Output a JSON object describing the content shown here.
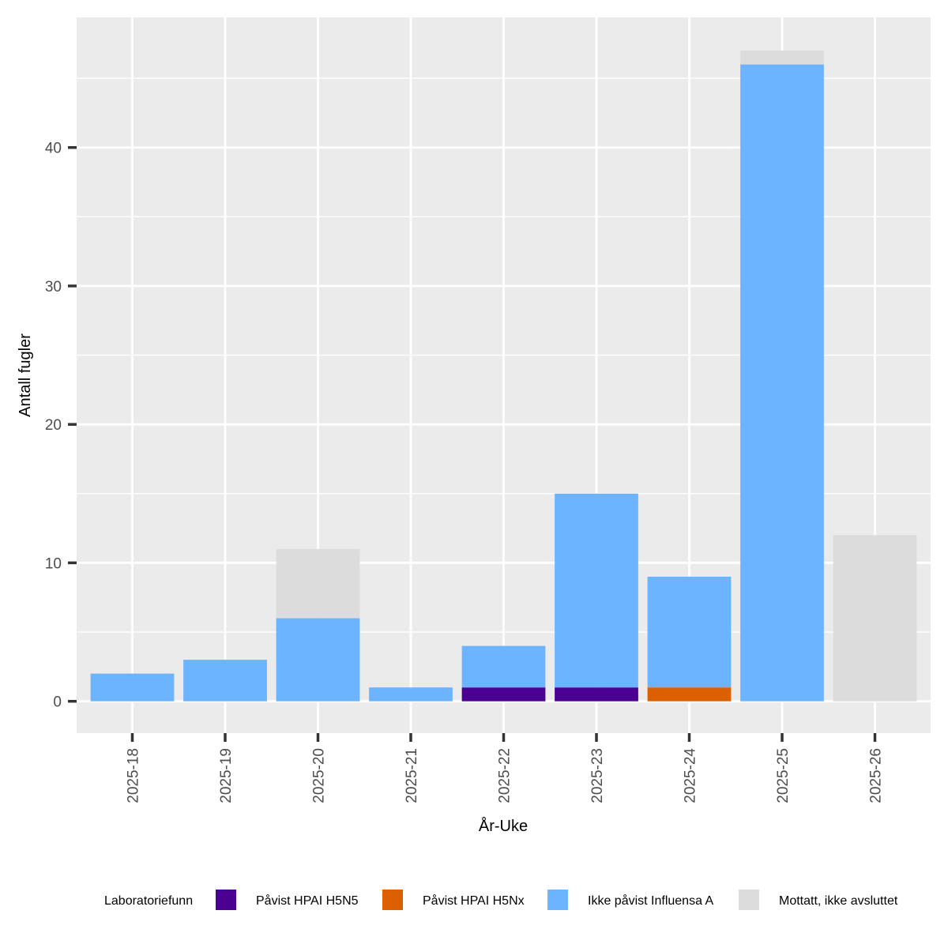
{
  "chart_data": {
    "type": "bar",
    "stacked": true,
    "xlabel": "År-Uke",
    "ylabel": "Antall fugler",
    "ylim": [
      -2.3,
      49.4
    ],
    "yticks": [
      0,
      10,
      20,
      30,
      40
    ],
    "grid": true,
    "legend_position": "bottom",
    "legend_title": "Laboratoriefunn",
    "categories": [
      "2025-18",
      "2025-19",
      "2025-20",
      "2025-21",
      "2025-22",
      "2025-23",
      "2025-24",
      "2025-25",
      "2025-26"
    ],
    "series": [
      {
        "name": "Påvist HPAI H5N5",
        "color": "#4b0092",
        "values": [
          0,
          0,
          0,
          0,
          1,
          1,
          0,
          0,
          0
        ]
      },
      {
        "name": "Påvist HPAI H5Nx",
        "color": "#dc6000",
        "values": [
          0,
          0,
          0,
          0,
          0,
          0,
          1,
          0,
          0
        ]
      },
      {
        "name": "Ikke påvist Influensa A",
        "color": "#6cb4ff",
        "values": [
          2,
          3,
          6,
          1,
          3,
          14,
          8,
          46,
          0
        ]
      },
      {
        "name": "Mottatt, ikke avsluttet",
        "color": "#dcdcdc",
        "values": [
          0,
          0,
          5,
          0,
          0,
          0,
          0,
          1,
          12
        ]
      }
    ]
  }
}
